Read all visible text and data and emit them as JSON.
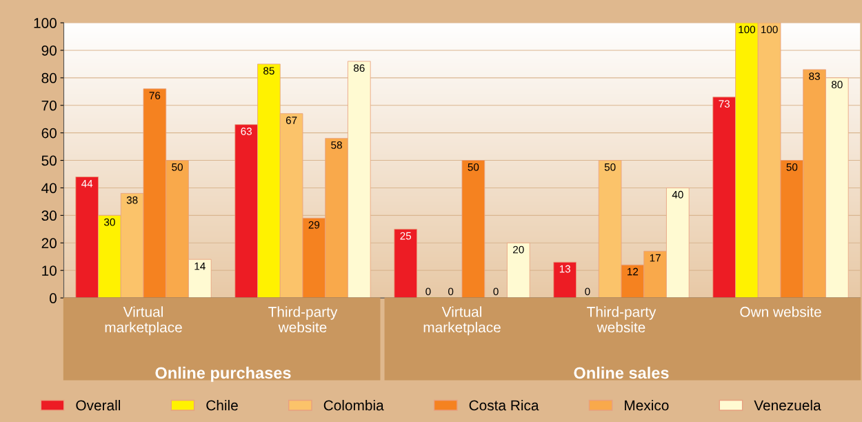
{
  "chart_data": {
    "type": "bar",
    "categories": [
      "Virtual\nmarketplace",
      "Third-party\nwebsite",
      "Virtual\nmarketplace",
      "Third-party\nwebsite",
      "Own website"
    ],
    "series": [
      {
        "name": "Overall",
        "color": "#ed1c24",
        "values": [
          44,
          63,
          25,
          13,
          73
        ]
      },
      {
        "name": "Chile",
        "color": "#fff200",
        "values": [
          30,
          85,
          0,
          0,
          100
        ]
      },
      {
        "name": "Colombia",
        "color": "#fbc36a",
        "values": [
          38,
          67,
          0,
          50,
          100
        ]
      },
      {
        "name": "Costa Rica",
        "color": "#f58220",
        "values": [
          76,
          29,
          50,
          12,
          50
        ]
      },
      {
        "name": "Mexico",
        "color": "#f9a94b",
        "values": [
          50,
          58,
          0,
          17,
          83
        ]
      },
      {
        "name": "Venezuela",
        "color": "#fffad2",
        "values": [
          14,
          86,
          20,
          40,
          80
        ]
      }
    ],
    "annotations": [
      "Online purchases",
      "Online sales"
    ],
    "ylim": [
      0,
      100
    ],
    "yticks": [
      0,
      10,
      20,
      30,
      40,
      50,
      60,
      70,
      80,
      90,
      100
    ],
    "grid": "y",
    "legend": "bottom",
    "data_labels": true
  }
}
